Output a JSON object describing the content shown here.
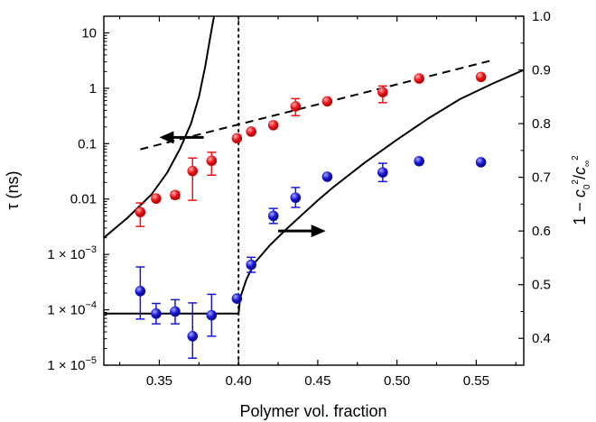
{
  "chart_data": {
    "type": "scatter",
    "xlabel": "Polymer vol. fraction",
    "ylabel_left": "τ (ns)",
    "ylabel_right": "1 − c0²/c∞²",
    "xlim": [
      0.315,
      0.58
    ],
    "ylim_left": [
      1e-05,
      20
    ],
    "yscale_left": "log",
    "ylim_right": [
      0.35,
      1.0
    ],
    "x_ticks": [
      "0.35",
      "0.40",
      "0.45",
      "0.50",
      "0.55"
    ],
    "y_left_ticks": [
      {
        "value": 10,
        "label": "10"
      },
      {
        "value": 1,
        "label": "1"
      },
      {
        "value": 0.1,
        "label": "0.1"
      },
      {
        "value": 0.01,
        "label": "0.01"
      },
      {
        "value": 0.001,
        "label": "1 × 10",
        "exp": "−3"
      },
      {
        "value": 0.0001,
        "label": "1 × 10",
        "exp": "−4"
      },
      {
        "value": 1e-05,
        "label": "1 × 10",
        "exp": "−5"
      }
    ],
    "y_right_ticks": [
      "0.4",
      "0.5",
      "0.6",
      "0.7",
      "0.8",
      "0.9",
      "1.0"
    ],
    "series": [
      {
        "axis": "left",
        "color": "#e8161b",
        "points": [
          {
            "x": 0.338,
            "y": 0.0058,
            "lo": 0.0032,
            "hi": 0.0085
          },
          {
            "x": 0.348,
            "y": 0.0102
          },
          {
            "x": 0.36,
            "y": 0.0118,
            "lo": 0.0102,
            "hi": 0.0135
          },
          {
            "x": 0.371,
            "y": 0.032,
            "lo": 0.0095,
            "hi": 0.055
          },
          {
            "x": 0.383,
            "y": 0.049,
            "lo": 0.027,
            "hi": 0.07
          },
          {
            "x": 0.399,
            "y": 0.125
          },
          {
            "x": 0.408,
            "y": 0.165
          },
          {
            "x": 0.422,
            "y": 0.215
          },
          {
            "x": 0.436,
            "y": 0.47,
            "lo": 0.32,
            "hi": 0.65
          },
          {
            "x": 0.456,
            "y": 0.58
          },
          {
            "x": 0.491,
            "y": 0.85,
            "lo": 0.55,
            "hi": 1.1
          },
          {
            "x": 0.514,
            "y": 1.5
          },
          {
            "x": 0.553,
            "y": 1.6
          }
        ]
      },
      {
        "axis": "right",
        "color": "#1a18d6",
        "points": [
          {
            "x": 0.338,
            "y": 0.488,
            "lo": 0.436,
            "hi": 0.533
          },
          {
            "x": 0.348,
            "y": 0.446,
            "lo": 0.427,
            "hi": 0.465
          },
          {
            "x": 0.36,
            "y": 0.45,
            "lo": 0.427,
            "hi": 0.472
          },
          {
            "x": 0.371,
            "y": 0.404,
            "lo": 0.363,
            "hi": 0.466
          },
          {
            "x": 0.383,
            "y": 0.443,
            "lo": 0.404,
            "hi": 0.482
          },
          {
            "x": 0.399,
            "y": 0.474
          },
          {
            "x": 0.408,
            "y": 0.537,
            "lo": 0.523,
            "hi": 0.551
          },
          {
            "x": 0.422,
            "y": 0.628,
            "lo": 0.614,
            "hi": 0.642
          },
          {
            "x": 0.436,
            "y": 0.662,
            "lo": 0.644,
            "hi": 0.681
          },
          {
            "x": 0.456,
            "y": 0.701
          },
          {
            "x": 0.491,
            "y": 0.709,
            "lo": 0.692,
            "hi": 0.726
          },
          {
            "x": 0.514,
            "y": 0.73
          },
          {
            "x": 0.553,
            "y": 0.728
          }
        ]
      }
    ],
    "fit_lines": [
      {
        "style": "dashed",
        "axis": "left",
        "points": [
          [
            0.338,
            0.079
          ],
          [
            0.56,
            3.2
          ]
        ]
      },
      {
        "style": "solid",
        "axis": "left",
        "points": [
          [
            0.315,
            0.002
          ],
          [
            0.33,
            0.0046
          ],
          [
            0.345,
            0.012
          ],
          [
            0.355,
            0.03
          ],
          [
            0.363,
            0.08
          ],
          [
            0.37,
            0.23
          ],
          [
            0.375,
            0.7
          ],
          [
            0.379,
            2.5
          ],
          [
            0.382,
            8
          ],
          [
            0.3845,
            20
          ]
        ]
      },
      {
        "style": "solid",
        "axis": "right",
        "points": [
          [
            0.315,
            0.446
          ],
          [
            0.4,
            0.446
          ],
          [
            0.401,
            0.475
          ],
          [
            0.405,
            0.51
          ],
          [
            0.41,
            0.54
          ],
          [
            0.42,
            0.574
          ],
          [
            0.43,
            0.603
          ],
          [
            0.44,
            0.63
          ],
          [
            0.45,
            0.657
          ],
          [
            0.46,
            0.682
          ],
          [
            0.48,
            0.728
          ],
          [
            0.5,
            0.77
          ],
          [
            0.52,
            0.81
          ],
          [
            0.54,
            0.846
          ],
          [
            0.56,
            0.874
          ],
          [
            0.58,
            0.9
          ]
        ]
      }
    ],
    "vline": {
      "x": 0.4,
      "style": "dotted"
    },
    "arrows": [
      {
        "direction": "left",
        "from": [
          0.378,
          0.13
        ],
        "to": [
          0.35,
          0.13
        ],
        "axis": "left"
      },
      {
        "direction": "right",
        "from": [
          0.425,
          0.6
        ],
        "to": [
          0.455,
          0.6
        ],
        "axis": "right"
      }
    ]
  }
}
